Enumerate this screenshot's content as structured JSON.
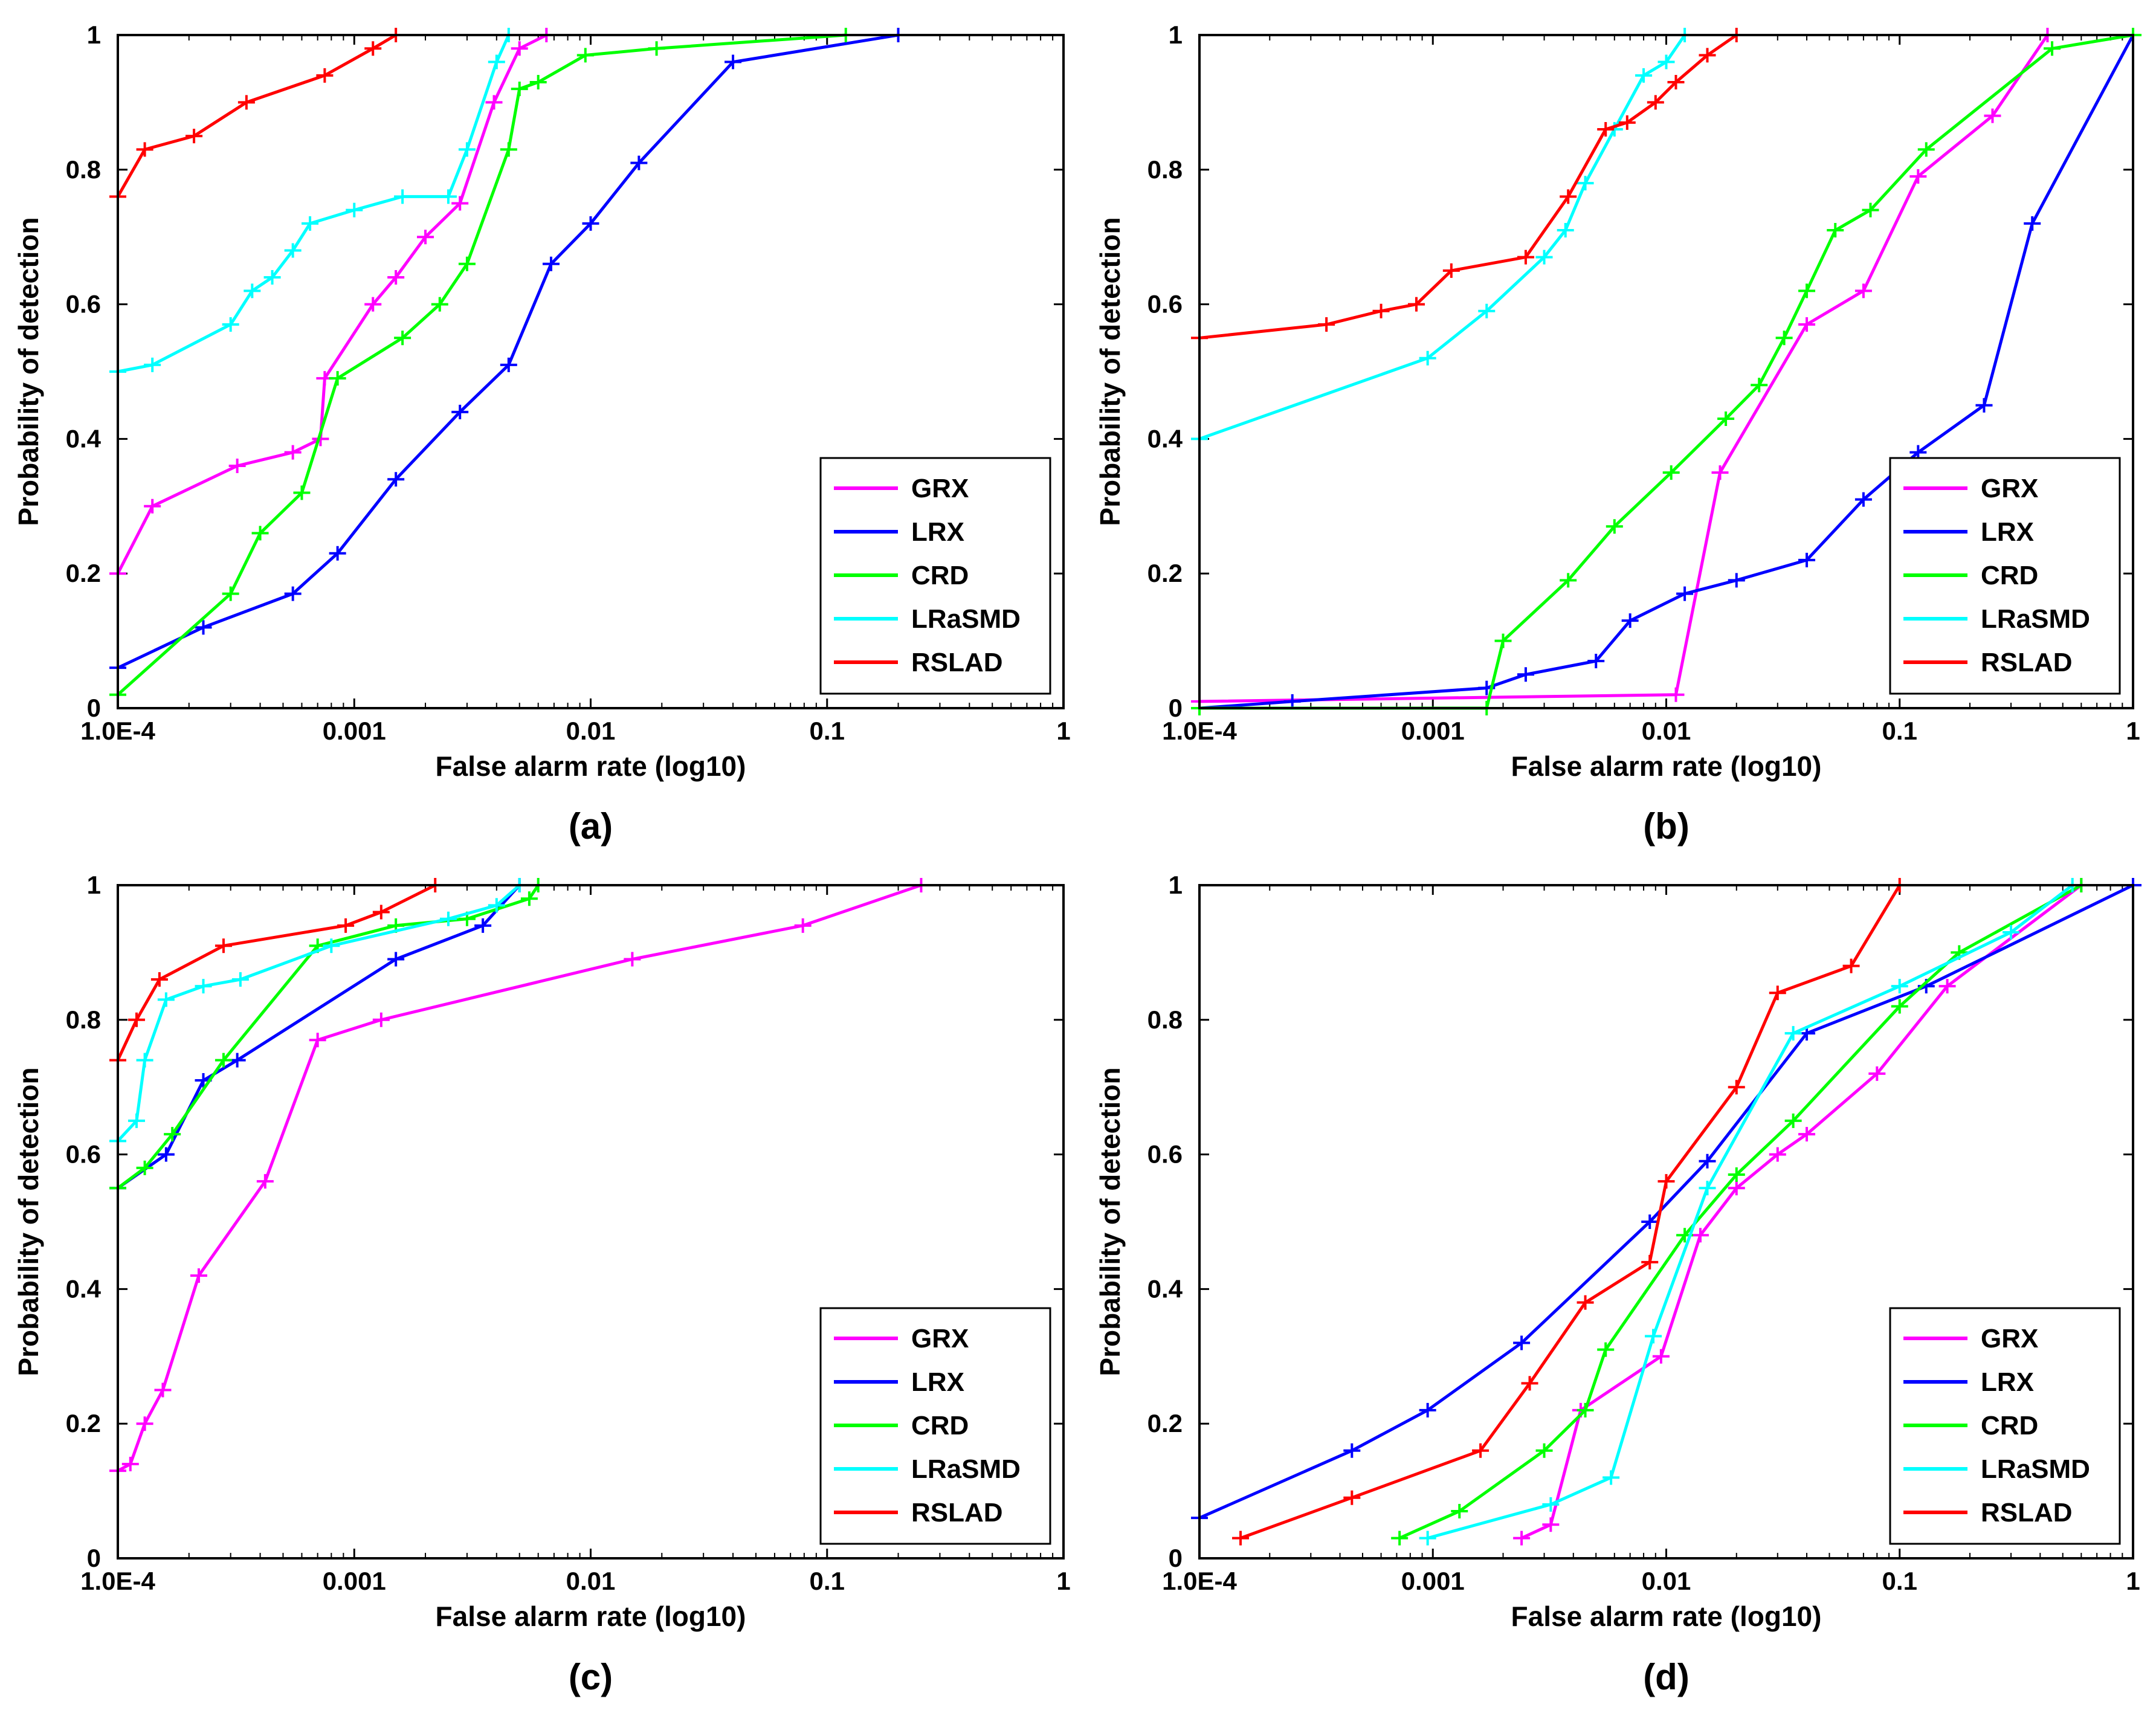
{
  "chart_data": [
    {
      "type": "line",
      "panel_label": "(a)",
      "xscale": "log10",
      "xlim": [
        0.0001,
        1
      ],
      "ylim": [
        0,
        1
      ],
      "xlabel": "False alarm rate (log10)",
      "ylabel": "Probability of detection",
      "xticks": [
        "1.0E-4",
        "0.001",
        "0.01",
        "0.1",
        "1"
      ],
      "yticks": [
        "0",
        "0.2",
        "0.4",
        "0.6",
        "0.8",
        "1"
      ],
      "legend_position": "bottom-right",
      "series": [
        {
          "name": "GRX",
          "color": "#ff00ff",
          "x": [
            0.0001,
            0.00014,
            0.00032,
            0.00055,
            0.00072,
            0.00075,
            0.0012,
            0.0015,
            0.002,
            0.0028,
            0.0039,
            0.005,
            0.0065
          ],
          "y": [
            0.2,
            0.3,
            0.36,
            0.38,
            0.4,
            0.49,
            0.6,
            0.64,
            0.7,
            0.75,
            0.9,
            0.98,
            1.0
          ]
        },
        {
          "name": "LRX",
          "color": "#0000ff",
          "x": [
            0.0001,
            0.00023,
            0.00055,
            0.00085,
            0.0015,
            0.0028,
            0.0045,
            0.0068,
            0.01,
            0.016,
            0.04,
            0.2
          ],
          "y": [
            0.06,
            0.12,
            0.17,
            0.23,
            0.34,
            0.44,
            0.51,
            0.66,
            0.72,
            0.81,
            0.96,
            1.0
          ]
        },
        {
          "name": "CRD",
          "color": "#00ff00",
          "x": [
            0.0001,
            0.0003,
            0.0004,
            0.0006,
            0.00085,
            0.0016,
            0.0023,
            0.003,
            0.0045,
            0.005,
            0.006,
            0.0095,
            0.019,
            0.12
          ],
          "y": [
            0.02,
            0.17,
            0.26,
            0.32,
            0.49,
            0.55,
            0.6,
            0.66,
            0.83,
            0.92,
            0.93,
            0.97,
            0.98,
            1.0
          ]
        },
        {
          "name": "LRaSMD",
          "color": "#00ffff",
          "x": [
            0.0001,
            0.00014,
            0.0003,
            0.00037,
            0.00045,
            0.00055,
            0.00065,
            0.001,
            0.0016,
            0.0025,
            0.003,
            0.004,
            0.0045
          ],
          "y": [
            0.5,
            0.51,
            0.57,
            0.62,
            0.64,
            0.68,
            0.72,
            0.74,
            0.76,
            0.76,
            0.83,
            0.96,
            1.0
          ]
        },
        {
          "name": "RSLAD",
          "color": "#ff0000",
          "x": [
            0.0001,
            0.00013,
            0.00021,
            0.00035,
            0.00075,
            0.0012,
            0.0015
          ],
          "y": [
            0.76,
            0.83,
            0.85,
            0.9,
            0.94,
            0.98,
            1.0
          ]
        }
      ]
    },
    {
      "type": "line",
      "panel_label": "(b)",
      "xscale": "log10",
      "xlim": [
        0.0001,
        1
      ],
      "ylim": [
        0,
        1
      ],
      "xlabel": "False alarm rate (log10)",
      "ylabel": "Probability of detection",
      "xticks": [
        "1.0E-4",
        "0.001",
        "0.01",
        "0.1",
        "1"
      ],
      "yticks": [
        "0",
        "0.2",
        "0.4",
        "0.6",
        "0.8",
        "1"
      ],
      "legend_position": "bottom-right",
      "series": [
        {
          "name": "GRX",
          "color": "#ff00ff",
          "x": [
            0.0001,
            0.011,
            0.017,
            0.04,
            0.07,
            0.12,
            0.25,
            0.43
          ],
          "y": [
            0.01,
            0.02,
            0.35,
            0.57,
            0.62,
            0.79,
            0.88,
            1.0
          ]
        },
        {
          "name": "LRX",
          "color": "#0000ff",
          "x": [
            0.0001,
            0.00025,
            0.0017,
            0.0025,
            0.005,
            0.007,
            0.012,
            0.02,
            0.04,
            0.07,
            0.12,
            0.23,
            0.37,
            1.0
          ],
          "y": [
            0.0,
            0.01,
            0.03,
            0.05,
            0.07,
            0.13,
            0.17,
            0.19,
            0.22,
            0.31,
            0.38,
            0.45,
            0.72,
            1.0
          ]
        },
        {
          "name": "CRD",
          "color": "#00ff00",
          "x": [
            0.0001,
            0.0017,
            0.002,
            0.0038,
            0.006,
            0.0105,
            0.018,
            0.025,
            0.032,
            0.04,
            0.053,
            0.075,
            0.13,
            0.45,
            1.0
          ],
          "y": [
            0.0,
            0.0,
            0.1,
            0.19,
            0.27,
            0.35,
            0.43,
            0.48,
            0.55,
            0.62,
            0.71,
            0.74,
            0.83,
            0.98,
            1.0
          ]
        },
        {
          "name": "LRaSMD",
          "color": "#00ffff",
          "x": [
            0.0001,
            0.00095,
            0.0017,
            0.003,
            0.0037,
            0.0045,
            0.006,
            0.008,
            0.01,
            0.012
          ],
          "y": [
            0.4,
            0.52,
            0.59,
            0.67,
            0.71,
            0.78,
            0.86,
            0.94,
            0.96,
            1.0
          ]
        },
        {
          "name": "RSLAD",
          "color": "#ff0000",
          "x": [
            0.0001,
            0.00035,
            0.0006,
            0.00085,
            0.0012,
            0.0025,
            0.0038,
            0.0055,
            0.0068,
            0.009,
            0.011,
            0.015,
            0.02
          ],
          "y": [
            0.55,
            0.57,
            0.59,
            0.6,
            0.65,
            0.67,
            0.76,
            0.86,
            0.87,
            0.9,
            0.93,
            0.97,
            1.0
          ]
        }
      ]
    },
    {
      "type": "line",
      "panel_label": "(c)",
      "xscale": "log10",
      "xlim": [
        0.0001,
        1
      ],
      "ylim": [
        0,
        1
      ],
      "xlabel": "False alarm rate (log10)",
      "ylabel": "Probability of detection",
      "xticks": [
        "1.0E-4",
        "0.001",
        "0.01",
        "0.1",
        "1"
      ],
      "yticks": [
        "0",
        "0.2",
        "0.4",
        "0.6",
        "0.8",
        "1"
      ],
      "legend_position": "bottom-right",
      "series": [
        {
          "name": "GRX",
          "color": "#ff00ff",
          "x": [
            0.0001,
            0.000113,
            0.00013,
            0.000155,
            0.00022,
            0.00042,
            0.0007,
            0.0013,
            0.015,
            0.079,
            0.25
          ],
          "y": [
            0.13,
            0.14,
            0.2,
            0.25,
            0.42,
            0.56,
            0.77,
            0.8,
            0.89,
            0.94,
            1.0
          ]
        },
        {
          "name": "LRX",
          "color": "#0000ff",
          "x": [
            0.0001,
            0.00016,
            0.00023,
            0.00032,
            0.0015,
            0.0035,
            0.005
          ],
          "y": [
            0.55,
            0.6,
            0.71,
            0.74,
            0.89,
            0.94,
            1.0
          ]
        },
        {
          "name": "CRD",
          "color": "#00ff00",
          "x": [
            0.0001,
            0.00013,
            0.00017,
            0.00028,
            0.0007,
            0.0015,
            0.003,
            0.0055,
            0.006
          ],
          "y": [
            0.55,
            0.58,
            0.63,
            0.74,
            0.91,
            0.94,
            0.95,
            0.98,
            1.0
          ]
        },
        {
          "name": "LRaSMD",
          "color": "#00ffff",
          "x": [
            0.0001,
            0.00012,
            0.00013,
            0.00016,
            0.00023,
            0.00033,
            0.0008,
            0.0025,
            0.004,
            0.005
          ],
          "y": [
            0.62,
            0.65,
            0.74,
            0.83,
            0.85,
            0.86,
            0.91,
            0.95,
            0.97,
            1.0
          ]
        },
        {
          "name": "RSLAD",
          "color": "#ff0000",
          "x": [
            0.0001,
            0.00012,
            0.00015,
            0.00028,
            0.00092,
            0.0013,
            0.0022
          ],
          "y": [
            0.74,
            0.8,
            0.86,
            0.91,
            0.94,
            0.96,
            1.0
          ]
        }
      ]
    },
    {
      "type": "line",
      "panel_label": "(d)",
      "xscale": "log10",
      "xlim": [
        0.0001,
        1
      ],
      "ylim": [
        0,
        1
      ],
      "xlabel": "False alarm rate (log10)",
      "ylabel": "Probability of detection",
      "xticks": [
        "1.0E-4",
        "0.001",
        "0.01",
        "0.1",
        "1"
      ],
      "yticks": [
        "0",
        "0.2",
        "0.4",
        "0.6",
        "0.8",
        "1"
      ],
      "legend_position": "bottom-right",
      "series": [
        {
          "name": "GRX",
          "color": "#ff00ff",
          "x": [
            0.0024,
            0.0032,
            0.0043,
            0.0095,
            0.014,
            0.02,
            0.03,
            0.04,
            0.08,
            0.16,
            0.6
          ],
          "y": [
            0.03,
            0.05,
            0.22,
            0.3,
            0.48,
            0.55,
            0.6,
            0.63,
            0.72,
            0.85,
            1.0
          ]
        },
        {
          "name": "LRX",
          "color": "#0000ff",
          "x": [
            0.0001,
            0.00045,
            0.00095,
            0.0024,
            0.0085,
            0.015,
            0.04,
            0.13,
            1.0
          ],
          "y": [
            0.06,
            0.16,
            0.22,
            0.32,
            0.5,
            0.59,
            0.78,
            0.85,
            1.0
          ]
        },
        {
          "name": "CRD",
          "color": "#00ff00",
          "x": [
            0.00072,
            0.0013,
            0.003,
            0.0045,
            0.0055,
            0.012,
            0.02,
            0.035,
            0.1,
            0.18,
            0.6
          ],
          "y": [
            0.03,
            0.07,
            0.16,
            0.22,
            0.31,
            0.48,
            0.57,
            0.65,
            0.82,
            0.9,
            1.0
          ]
        },
        {
          "name": "LRaSMD",
          "color": "#00ffff",
          "x": [
            0.00095,
            0.0032,
            0.0058,
            0.0088,
            0.015,
            0.035,
            0.1,
            0.3,
            0.55
          ],
          "y": [
            0.03,
            0.08,
            0.12,
            0.33,
            0.55,
            0.78,
            0.85,
            0.93,
            1.0
          ]
        },
        {
          "name": "RSLAD",
          "color": "#ff0000",
          "x": [
            0.00015,
            0.00045,
            0.0016,
            0.0026,
            0.0045,
            0.0085,
            0.01,
            0.02,
            0.03,
            0.062,
            0.1
          ],
          "y": [
            0.03,
            0.09,
            0.16,
            0.26,
            0.38,
            0.44,
            0.56,
            0.7,
            0.84,
            0.88,
            1.0
          ]
        }
      ]
    }
  ]
}
